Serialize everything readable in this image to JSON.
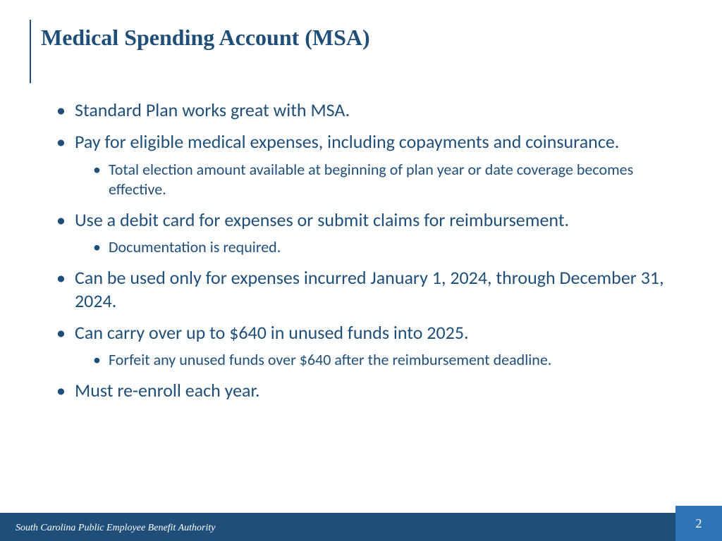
{
  "colors": {
    "brand": "#1f4e79",
    "accent": "#2e75b6",
    "background": "#ffffff",
    "footer_text": "#ffffff"
  },
  "typography": {
    "title_family": "Times New Roman",
    "title_weight": "bold",
    "title_size_pt": 24,
    "body_family": "Calibri",
    "body_size_pt": 20,
    "sub_size_pt": 17,
    "footer_family": "Times New Roman",
    "footer_style": "italic",
    "footer_size_pt": 11
  },
  "title": "Medical Spending Account (MSA)",
  "bullets": [
    {
      "text": "Standard Plan works great with MSA.",
      "sub": []
    },
    {
      "text": "Pay for eligible medical expenses, including copayments and coinsurance.",
      "sub": [
        "Total election amount available at beginning of plan year or date coverage becomes effective."
      ]
    },
    {
      "text": "Use a debit card for expenses or submit claims for reimbursement.",
      "sub": [
        "Documentation is required."
      ]
    },
    {
      "text": "Can be used only for expenses incurred January 1, 2024, through December 31, 2024.",
      "sub": []
    },
    {
      "text": "Can carry over up to $640 in unused funds into 2025.",
      "sub": [
        "Forfeit any unused funds over $640 after the reimbursement deadline."
      ]
    },
    {
      "text": "Must re-enroll each year.",
      "sub": []
    }
  ],
  "footer": {
    "org": "South Carolina Public Employee Benefit Authority",
    "page": "2"
  }
}
